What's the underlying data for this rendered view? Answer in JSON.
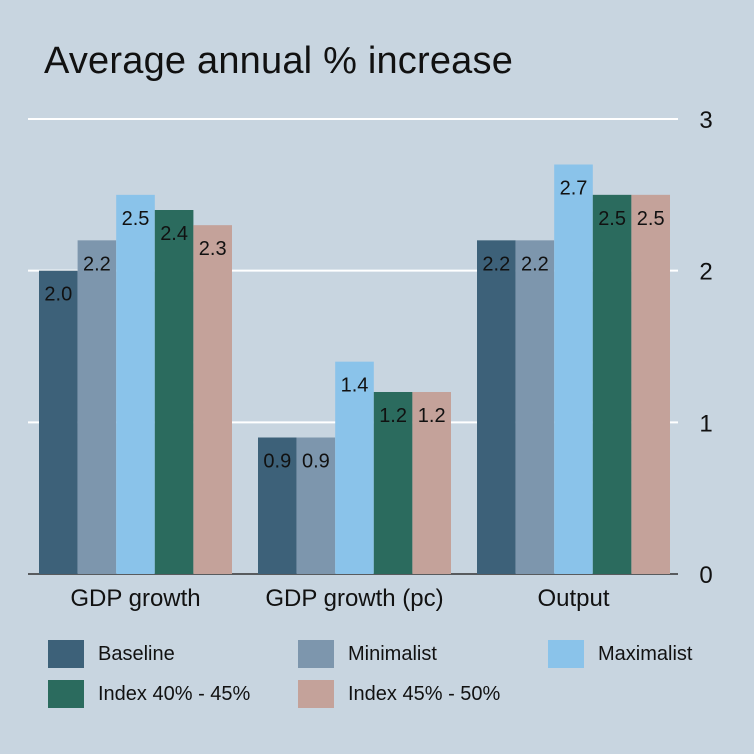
{
  "chart_data": {
    "type": "bar",
    "title": "Average annual % increase",
    "xlabel": "",
    "ylabel": "",
    "categories": [
      "GDP growth",
      "GDP growth (pc)",
      "Output"
    ],
    "series": [
      {
        "name": "Baseline",
        "color": "#3d6179",
        "values": [
          2.0,
          0.9,
          2.2
        ],
        "labels": [
          "2.0",
          "0.9",
          "2.2"
        ]
      },
      {
        "name": "Minimalist",
        "color": "#7d96ad",
        "values": [
          2.2,
          0.9,
          2.2
        ],
        "labels": [
          "2.2",
          "0.9",
          "2.2"
        ]
      },
      {
        "name": "Maximalist",
        "color": "#8ac3ea",
        "values": [
          2.5,
          1.4,
          2.7
        ],
        "labels": [
          "2.5",
          "1.4",
          "2.7"
        ]
      },
      {
        "name": "Index 40% - 45%",
        "color": "#2b6b5e",
        "values": [
          2.4,
          1.2,
          2.5
        ],
        "labels": [
          "2.4",
          "1.2",
          "2.5"
        ]
      },
      {
        "name": "Index 45% - 50%",
        "color": "#c4a29a",
        "values": [
          2.3,
          1.2,
          2.5
        ],
        "labels": [
          "2.3",
          "1.2",
          "2.5"
        ]
      }
    ],
    "ylim": [
      0,
      3
    ],
    "yticks": [
      0,
      1,
      2,
      3
    ],
    "ytick_labels": [
      "0",
      "1",
      "2",
      "3"
    ],
    "y_axis_side": "right",
    "grid": true,
    "legend_position": "bottom",
    "background": "#c8d5e0"
  }
}
